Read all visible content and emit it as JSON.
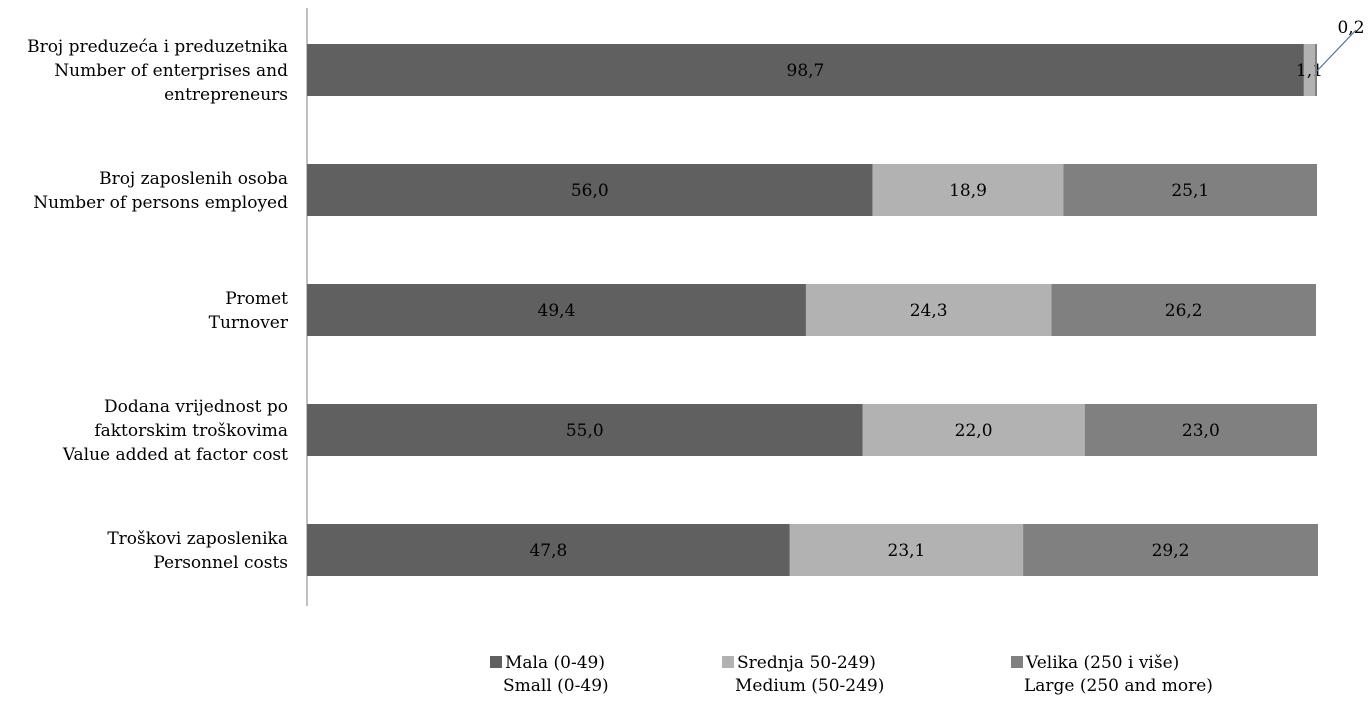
{
  "chart_data": {
    "type": "bar",
    "orientation": "horizontal",
    "stacked": true,
    "title": "",
    "xlabel": "",
    "ylabel": "",
    "xlim": [
      0,
      100
    ],
    "grid": false,
    "legend_position": "bottom",
    "categories": [
      [
        "Broj preduzeća i preduzetnika",
        "Number of enterprises and",
        "entrepreneurs"
      ],
      [
        "Broj zaposlenih osoba",
        "Number of persons employed"
      ],
      [
        "Promet",
        "Turnover"
      ],
      [
        "Dodana vrijednost po",
        "faktorskim troškovima",
        "Value added at factor cost"
      ],
      [
        "Troškovi zaposlenika",
        "Personnel costs"
      ]
    ],
    "series": [
      {
        "name": [
          "Mala (0-49)",
          "Small (0-49)"
        ],
        "color": "#606060",
        "values": [
          98.7,
          56.0,
          49.4,
          55.0,
          47.8
        ],
        "labels": [
          "98,7",
          "56,0",
          "49,4",
          "55,0",
          "47,8"
        ]
      },
      {
        "name": [
          "Srednja 50-249)",
          "Medium (50-249)"
        ],
        "color": "#b2b2b2",
        "values": [
          1.1,
          18.9,
          24.3,
          22.0,
          23.1
        ],
        "labels": [
          "1,1",
          "18,9",
          "24,3",
          "22,0",
          "23,1"
        ]
      },
      {
        "name": [
          "Velika (250 i više)",
          "Large (250 and more)"
        ],
        "color": "#808080",
        "values": [
          0.2,
          25.1,
          26.2,
          23.0,
          29.2
        ],
        "labels": [
          "0,2",
          "25,1",
          "26,2",
          "23,0",
          "29,2"
        ]
      }
    ]
  }
}
